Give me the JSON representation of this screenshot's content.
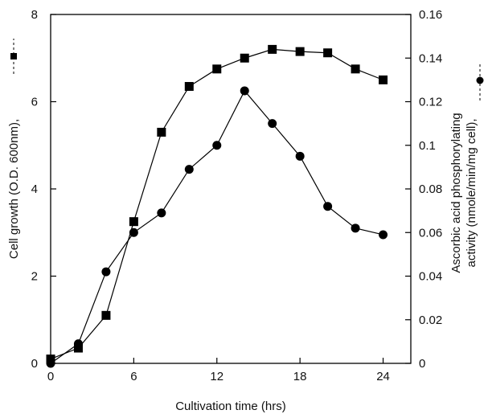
{
  "chart_data": {
    "type": "line",
    "xlabel": "Cultivation time (hrs)",
    "ylabel_left": "Cell growth (O.D. 600nm),",
    "ylabel_right_line1": "Ascorbic acid phosphorylating",
    "ylabel_right_line2": "activity (nmole/min/mg cell),",
    "xlim": [
      0,
      26
    ],
    "ylim_left": [
      0,
      8
    ],
    "ylim_right": [
      0,
      0.16
    ],
    "x_ticks": [
      0,
      6,
      12,
      18,
      24
    ],
    "x_tick_labels": [
      "0",
      "6",
      "12",
      "18",
      "24"
    ],
    "y_left_ticks": [
      0,
      2,
      4,
      6,
      8
    ],
    "y_left_tick_labels": [
      "0",
      "2",
      "4",
      "6",
      "8"
    ],
    "y_right_ticks": [
      0,
      0.02,
      0.04,
      0.06,
      0.08,
      0.1,
      0.12,
      0.14,
      0.16
    ],
    "y_right_tick_labels": [
      "0",
      "0.02",
      "0.04",
      "0.06",
      "0.08",
      "0.1",
      "0.12",
      "0.14",
      "0.16"
    ],
    "grid": false,
    "series": [
      {
        "axis": "left",
        "marker": "square",
        "color": "#000000",
        "x": [
          0,
          2,
          4,
          6,
          8,
          10,
          12,
          14,
          16,
          18,
          20,
          22,
          24
        ],
        "y": [
          0.1,
          0.35,
          1.1,
          3.25,
          5.3,
          6.35,
          6.75,
          7.0,
          7.2,
          7.15,
          7.12,
          6.75,
          6.5
        ]
      },
      {
        "axis": "right",
        "marker": "circle",
        "color": "#000000",
        "x": [
          0,
          2,
          4,
          6,
          8,
          10,
          12,
          14,
          16,
          18,
          20,
          22,
          24
        ],
        "y": [
          0.0,
          0.009,
          0.042,
          0.06,
          0.069,
          0.089,
          0.1,
          0.125,
          0.11,
          0.095,
          0.072,
          0.062,
          0.059
        ]
      }
    ]
  }
}
